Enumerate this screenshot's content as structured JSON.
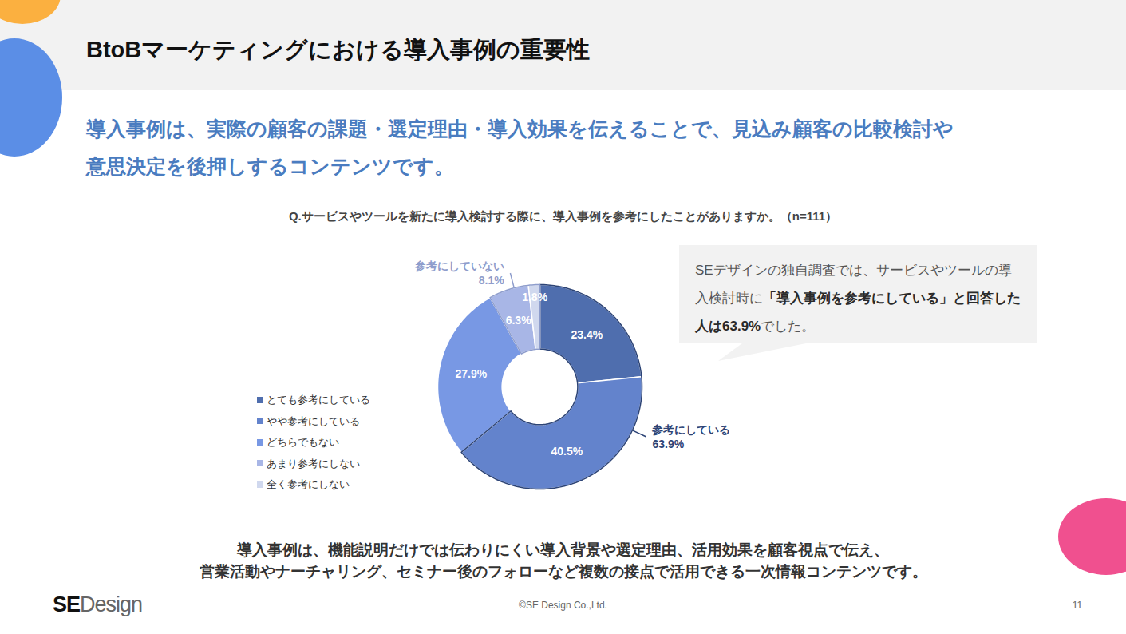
{
  "slide": {
    "title": "BtoBマーケティングにおける導入事例の重要性",
    "lead": [
      "導入事例は、実際の顧客の課題・選定理由・導入効果を伝えることで、見込み顧客の比較検討や",
      "意思決定を後押しするコンテンツです。"
    ],
    "callout": [
      {
        "text": "SEデザインの独自調査では、サービスやツールの導入検討時に"
      },
      {
        "text": "「導入事例を参考にしている」と回答した人は63.9%",
        "bold": true
      },
      {
        "text": "でした。"
      }
    ],
    "caption": [
      "導入事例は、機能説明だけでは伝わりにくい導入背景や選定理由、活用効果を顧客視点で伝え、",
      "営業活動やナーチャリング、セミナー後のフォローなど複数の接点で活用できる一次情報コンテンツです。"
    ],
    "logo": {
      "bold": "SE",
      "light": "Design"
    },
    "copyright": "©SE Design Co.,Ltd.",
    "page": "11"
  },
  "chart_data": {
    "type": "pie",
    "title": "Q.サービスやツールを新たに導入検討する際に、導入事例を参考にしたことがありますか。（n=111）",
    "categories": [
      "とても参考にしている",
      "やや参考にしている",
      "どちらでもない",
      "あまり参考にしない",
      "全く参考にしない"
    ],
    "values": [
      23.4,
      40.5,
      27.9,
      6.3,
      1.8
    ],
    "value_labels": [
      "23.4%",
      "40.5%",
      "27.9%",
      "6.3%",
      "1.8%"
    ],
    "colors": [
      "#4f6eae",
      "#6383cc",
      "#7898e4",
      "#a8b6e6",
      "#d0d8ee"
    ],
    "data_labels": true,
    "legend": "left",
    "annotations": [
      {
        "text": "参考にしている",
        "value": 63.9,
        "value_label": "63.9%",
        "members": [
          0,
          1
        ],
        "color": "#2d4476"
      },
      {
        "text": "参考にしていない",
        "value": 8.1,
        "value_label": "8.1%",
        "members": [
          3,
          4
        ],
        "color": "#8e9dcc"
      }
    ]
  }
}
